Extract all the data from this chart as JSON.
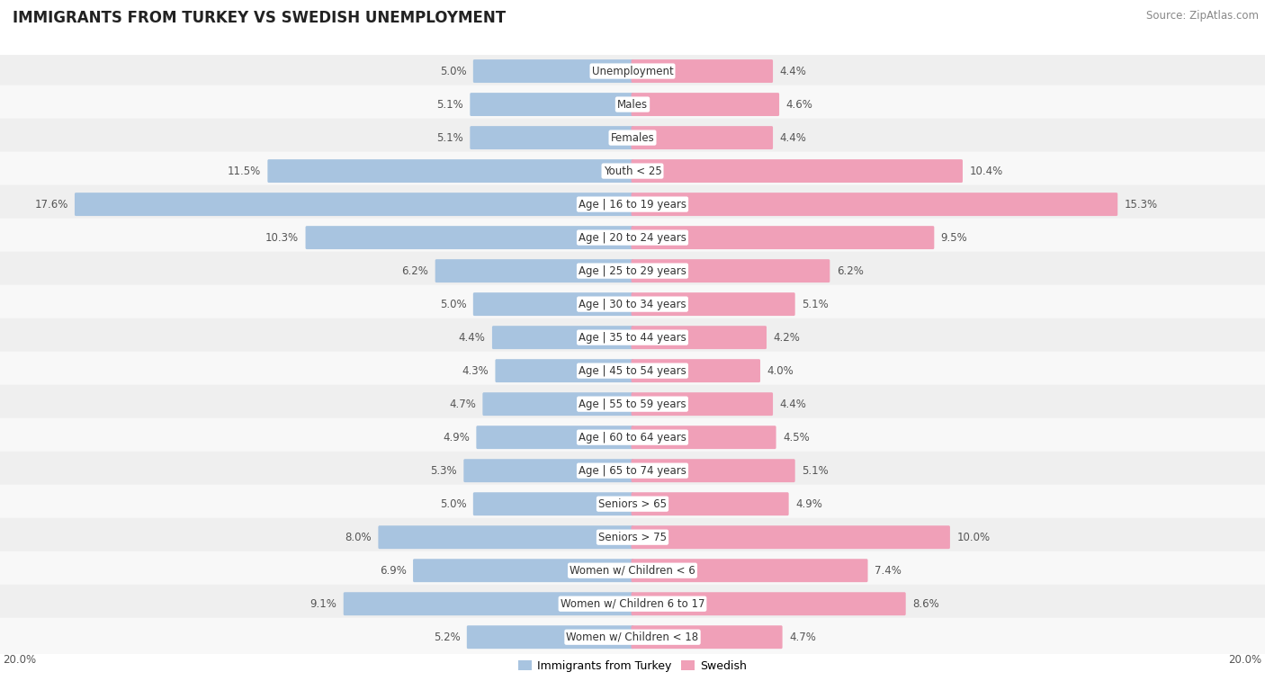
{
  "title": "IMMIGRANTS FROM TURKEY VS SWEDISH UNEMPLOYMENT",
  "source": "Source: ZipAtlas.com",
  "categories": [
    "Unemployment",
    "Males",
    "Females",
    "Youth < 25",
    "Age | 16 to 19 years",
    "Age | 20 to 24 years",
    "Age | 25 to 29 years",
    "Age | 30 to 34 years",
    "Age | 35 to 44 years",
    "Age | 45 to 54 years",
    "Age | 55 to 59 years",
    "Age | 60 to 64 years",
    "Age | 65 to 74 years",
    "Seniors > 65",
    "Seniors > 75",
    "Women w/ Children < 6",
    "Women w/ Children 6 to 17",
    "Women w/ Children < 18"
  ],
  "turkey_values": [
    5.0,
    5.1,
    5.1,
    11.5,
    17.6,
    10.3,
    6.2,
    5.0,
    4.4,
    4.3,
    4.7,
    4.9,
    5.3,
    5.0,
    8.0,
    6.9,
    9.1,
    5.2
  ],
  "swedish_values": [
    4.4,
    4.6,
    4.4,
    10.4,
    15.3,
    9.5,
    6.2,
    5.1,
    4.2,
    4.0,
    4.4,
    4.5,
    5.1,
    4.9,
    10.0,
    7.4,
    8.6,
    4.7
  ],
  "turkey_color": "#a8c4e0",
  "swedish_color": "#f0a0b8",
  "row_bg_even": "#efefef",
  "row_bg_odd": "#f8f8f8",
  "axis_max": 20.0,
  "background_color": "#ffffff",
  "title_fontsize": 12,
  "source_fontsize": 8.5,
  "label_fontsize": 8.5,
  "category_fontsize": 8.5,
  "legend_fontsize": 9
}
